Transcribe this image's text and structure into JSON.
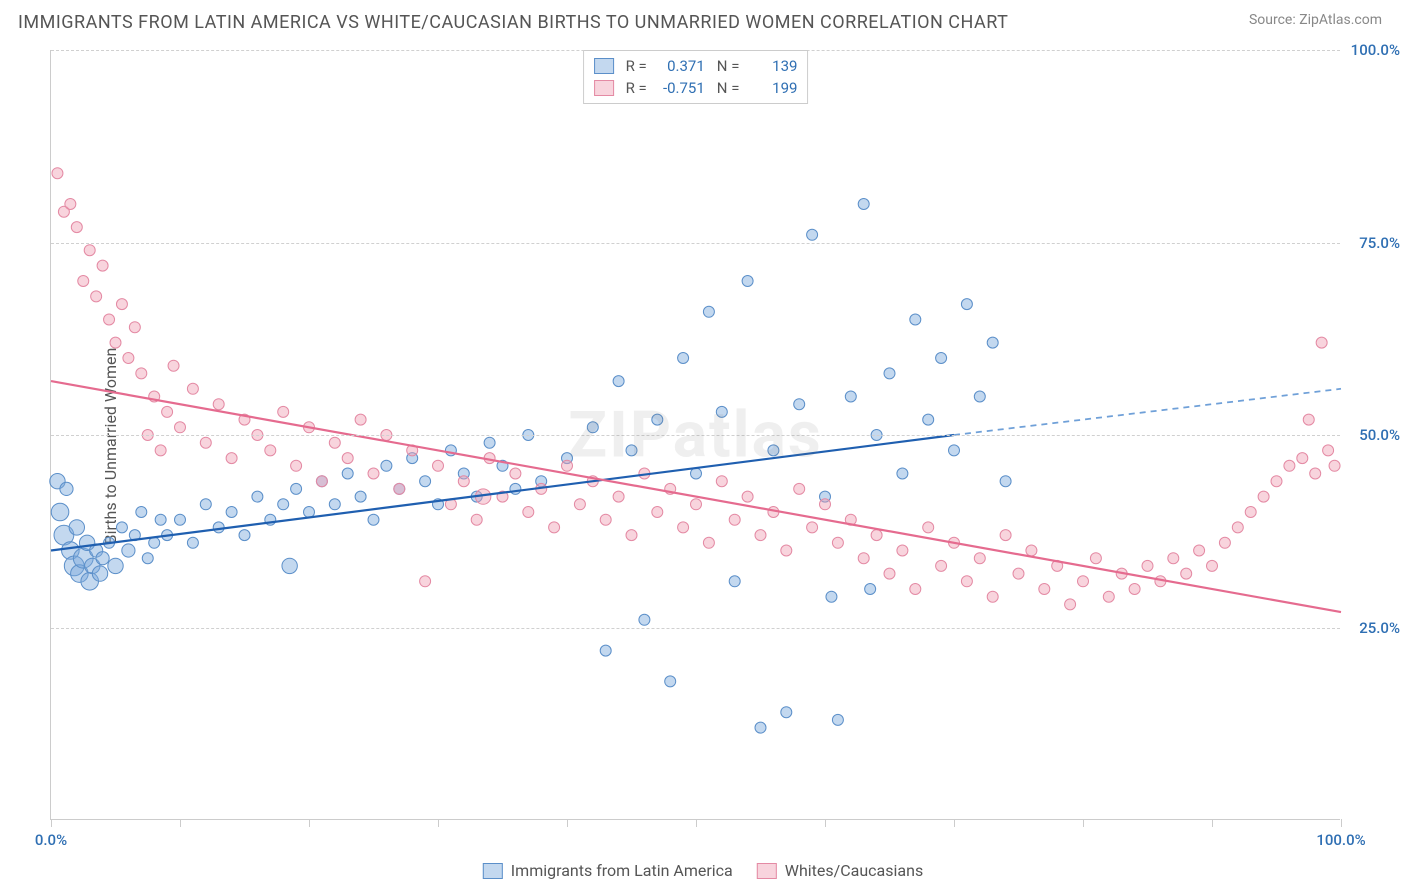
{
  "title": "IMMIGRANTS FROM LATIN AMERICA VS WHITE/CAUCASIAN BIRTHS TO UNMARRIED WOMEN CORRELATION CHART",
  "source_label": "Source: ",
  "source_name": "ZipAtlas.com",
  "ylabel": "Births to Unmarried Women",
  "watermark": "ZIPatlas",
  "chart": {
    "type": "scatter-correlation",
    "xlim": [
      0,
      100
    ],
    "ylim": [
      0,
      100
    ],
    "yticks": [
      25,
      50,
      75,
      100
    ],
    "ytick_labels": [
      "25.0%",
      "50.0%",
      "75.0%",
      "100.0%"
    ],
    "ytick_color": "#2f6fb3",
    "xticks": [
      0,
      10,
      20,
      30,
      40,
      50,
      60,
      70,
      80,
      90,
      100
    ],
    "xtick_labels_shown": {
      "0": "0.0%",
      "100": "100.0%"
    },
    "xtick_color": "#2f6fb3",
    "grid_color": "#d0d0d0",
    "background_color": "#ffffff",
    "axis_color": "#cccccc",
    "series": [
      {
        "id": "blue",
        "label": "Immigrants from Latin America",
        "color_fill": "rgba(122,168,219,0.45)",
        "color_stroke": "#5b8fc9",
        "R": "0.371",
        "N": "139",
        "trend": {
          "x1": 0,
          "y1": 35,
          "x2": 70,
          "y2": 50,
          "x2_ext": 100,
          "y2_ext": 56,
          "solid_color": "#1f5fb0",
          "dash_color": "#6fa0d8",
          "width": 2.2
        },
        "points": [
          {
            "x": 0.5,
            "y": 44,
            "r": 14
          },
          {
            "x": 0.7,
            "y": 40,
            "r": 16
          },
          {
            "x": 1,
            "y": 37,
            "r": 18
          },
          {
            "x": 1.2,
            "y": 43,
            "r": 12
          },
          {
            "x": 1.5,
            "y": 35,
            "r": 16
          },
          {
            "x": 1.8,
            "y": 33,
            "r": 18
          },
          {
            "x": 2,
            "y": 38,
            "r": 14
          },
          {
            "x": 2.2,
            "y": 32,
            "r": 16
          },
          {
            "x": 2.5,
            "y": 34,
            "r": 18
          },
          {
            "x": 2.8,
            "y": 36,
            "r": 14
          },
          {
            "x": 3,
            "y": 31,
            "r": 16
          },
          {
            "x": 3.2,
            "y": 33,
            "r": 14
          },
          {
            "x": 3.5,
            "y": 35,
            "r": 12
          },
          {
            "x": 3.8,
            "y": 32,
            "r": 14
          },
          {
            "x": 4,
            "y": 34,
            "r": 12
          },
          {
            "x": 4.5,
            "y": 36,
            "r": 10
          },
          {
            "x": 5,
            "y": 33,
            "r": 14
          },
          {
            "x": 5.5,
            "y": 38,
            "r": 10
          },
          {
            "x": 6,
            "y": 35,
            "r": 12
          },
          {
            "x": 6.5,
            "y": 37,
            "r": 10
          },
          {
            "x": 7,
            "y": 40,
            "r": 10
          },
          {
            "x": 7.5,
            "y": 34,
            "r": 10
          },
          {
            "x": 8,
            "y": 36,
            "r": 10
          },
          {
            "x": 8.5,
            "y": 39,
            "r": 10
          },
          {
            "x": 9,
            "y": 37,
            "r": 10
          },
          {
            "x": 10,
            "y": 39,
            "r": 10
          },
          {
            "x": 11,
            "y": 36,
            "r": 10
          },
          {
            "x": 12,
            "y": 41,
            "r": 10
          },
          {
            "x": 13,
            "y": 38,
            "r": 10
          },
          {
            "x": 14,
            "y": 40,
            "r": 10
          },
          {
            "x": 15,
            "y": 37,
            "r": 10
          },
          {
            "x": 16,
            "y": 42,
            "r": 10
          },
          {
            "x": 17,
            "y": 39,
            "r": 10
          },
          {
            "x": 18,
            "y": 41,
            "r": 10
          },
          {
            "x": 18.5,
            "y": 33,
            "r": 14
          },
          {
            "x": 19,
            "y": 43,
            "r": 10
          },
          {
            "x": 20,
            "y": 40,
            "r": 10
          },
          {
            "x": 21,
            "y": 44,
            "r": 10
          },
          {
            "x": 22,
            "y": 41,
            "r": 10
          },
          {
            "x": 23,
            "y": 45,
            "r": 10
          },
          {
            "x": 24,
            "y": 42,
            "r": 10
          },
          {
            "x": 25,
            "y": 39,
            "r": 10
          },
          {
            "x": 26,
            "y": 46,
            "r": 10
          },
          {
            "x": 27,
            "y": 43,
            "r": 10
          },
          {
            "x": 28,
            "y": 47,
            "r": 10
          },
          {
            "x": 29,
            "y": 44,
            "r": 10
          },
          {
            "x": 30,
            "y": 41,
            "r": 10
          },
          {
            "x": 31,
            "y": 48,
            "r": 10
          },
          {
            "x": 32,
            "y": 45,
            "r": 10
          },
          {
            "x": 33,
            "y": 42,
            "r": 10
          },
          {
            "x": 34,
            "y": 49,
            "r": 10
          },
          {
            "x": 35,
            "y": 46,
            "r": 10
          },
          {
            "x": 36,
            "y": 43,
            "r": 10
          },
          {
            "x": 37,
            "y": 50,
            "r": 10
          },
          {
            "x": 38,
            "y": 44,
            "r": 10
          },
          {
            "x": 40,
            "y": 47,
            "r": 10
          },
          {
            "x": 42,
            "y": 51,
            "r": 10
          },
          {
            "x": 43,
            "y": 22,
            "r": 10
          },
          {
            "x": 44,
            "y": 57,
            "r": 10
          },
          {
            "x": 45,
            "y": 48,
            "r": 10
          },
          {
            "x": 46,
            "y": 26,
            "r": 10
          },
          {
            "x": 47,
            "y": 52,
            "r": 10
          },
          {
            "x": 48,
            "y": 18,
            "r": 10
          },
          {
            "x": 49,
            "y": 60,
            "r": 10
          },
          {
            "x": 50,
            "y": 45,
            "r": 10
          },
          {
            "x": 51,
            "y": 66,
            "r": 10
          },
          {
            "x": 52,
            "y": 53,
            "r": 10
          },
          {
            "x": 53,
            "y": 31,
            "r": 10
          },
          {
            "x": 54,
            "y": 70,
            "r": 10
          },
          {
            "x": 55,
            "y": 12,
            "r": 10
          },
          {
            "x": 56,
            "y": 48,
            "r": 10
          },
          {
            "x": 57,
            "y": 14,
            "r": 10
          },
          {
            "x": 58,
            "y": 54,
            "r": 10
          },
          {
            "x": 59,
            "y": 76,
            "r": 10
          },
          {
            "x": 60,
            "y": 42,
            "r": 10
          },
          {
            "x": 60.5,
            "y": 29,
            "r": 10
          },
          {
            "x": 61,
            "y": 13,
            "r": 10
          },
          {
            "x": 62,
            "y": 55,
            "r": 10
          },
          {
            "x": 63,
            "y": 80,
            "r": 10
          },
          {
            "x": 63.5,
            "y": 30,
            "r": 10
          },
          {
            "x": 64,
            "y": 50,
            "r": 10
          },
          {
            "x": 65,
            "y": 58,
            "r": 10
          },
          {
            "x": 66,
            "y": 45,
            "r": 10
          },
          {
            "x": 67,
            "y": 65,
            "r": 10
          },
          {
            "x": 68,
            "y": 52,
            "r": 10
          },
          {
            "x": 69,
            "y": 60,
            "r": 10
          },
          {
            "x": 70,
            "y": 48,
            "r": 10
          },
          {
            "x": 71,
            "y": 67,
            "r": 10
          },
          {
            "x": 72,
            "y": 55,
            "r": 10
          },
          {
            "x": 73,
            "y": 62,
            "r": 10
          },
          {
            "x": 74,
            "y": 44,
            "r": 10
          }
        ]
      },
      {
        "id": "pink",
        "label": "Whites/Caucasians",
        "color_fill": "rgba(240,160,180,0.45)",
        "color_stroke": "#e48aa4",
        "R": "-0.751",
        "N": "199",
        "trend": {
          "x1": 0,
          "y1": 57,
          "x2": 100,
          "y2": 27,
          "solid_color": "#e56b8f",
          "width": 2.2
        },
        "points": [
          {
            "x": 0.5,
            "y": 84,
            "r": 10
          },
          {
            "x": 1,
            "y": 79,
            "r": 10
          },
          {
            "x": 1.5,
            "y": 80,
            "r": 10
          },
          {
            "x": 2,
            "y": 77,
            "r": 10
          },
          {
            "x": 2.5,
            "y": 70,
            "r": 10
          },
          {
            "x": 3,
            "y": 74,
            "r": 10
          },
          {
            "x": 3.5,
            "y": 68,
            "r": 10
          },
          {
            "x": 4,
            "y": 72,
            "r": 10
          },
          {
            "x": 4.5,
            "y": 65,
            "r": 10
          },
          {
            "x": 5,
            "y": 62,
            "r": 10
          },
          {
            "x": 5.5,
            "y": 67,
            "r": 10
          },
          {
            "x": 6,
            "y": 60,
            "r": 10
          },
          {
            "x": 6.5,
            "y": 64,
            "r": 10
          },
          {
            "x": 7,
            "y": 58,
            "r": 10
          },
          {
            "x": 7.5,
            "y": 50,
            "r": 10
          },
          {
            "x": 8,
            "y": 55,
            "r": 10
          },
          {
            "x": 8.5,
            "y": 48,
            "r": 10
          },
          {
            "x": 9,
            "y": 53,
            "r": 10
          },
          {
            "x": 9.5,
            "y": 59,
            "r": 10
          },
          {
            "x": 10,
            "y": 51,
            "r": 10
          },
          {
            "x": 11,
            "y": 56,
            "r": 10
          },
          {
            "x": 12,
            "y": 49,
            "r": 10
          },
          {
            "x": 13,
            "y": 54,
            "r": 10
          },
          {
            "x": 14,
            "y": 47,
            "r": 10
          },
          {
            "x": 15,
            "y": 52,
            "r": 10
          },
          {
            "x": 16,
            "y": 50,
            "r": 10
          },
          {
            "x": 17,
            "y": 48,
            "r": 10
          },
          {
            "x": 18,
            "y": 53,
            "r": 10
          },
          {
            "x": 19,
            "y": 46,
            "r": 10
          },
          {
            "x": 20,
            "y": 51,
            "r": 10
          },
          {
            "x": 21,
            "y": 44,
            "r": 10
          },
          {
            "x": 22,
            "y": 49,
            "r": 10
          },
          {
            "x": 23,
            "y": 47,
            "r": 10
          },
          {
            "x": 24,
            "y": 52,
            "r": 10
          },
          {
            "x": 25,
            "y": 45,
            "r": 10
          },
          {
            "x": 26,
            "y": 50,
            "r": 10
          },
          {
            "x": 27,
            "y": 43,
            "r": 10
          },
          {
            "x": 28,
            "y": 48,
            "r": 10
          },
          {
            "x": 29,
            "y": 31,
            "r": 10
          },
          {
            "x": 30,
            "y": 46,
            "r": 10
          },
          {
            "x": 31,
            "y": 41,
            "r": 10
          },
          {
            "x": 32,
            "y": 44,
            "r": 10
          },
          {
            "x": 33,
            "y": 39,
            "r": 10
          },
          {
            "x": 33.5,
            "y": 42,
            "r": 14
          },
          {
            "x": 34,
            "y": 47,
            "r": 10
          },
          {
            "x": 35,
            "y": 42,
            "r": 10
          },
          {
            "x": 36,
            "y": 45,
            "r": 10
          },
          {
            "x": 37,
            "y": 40,
            "r": 10
          },
          {
            "x": 38,
            "y": 43,
            "r": 10
          },
          {
            "x": 39,
            "y": 38,
            "r": 10
          },
          {
            "x": 40,
            "y": 46,
            "r": 10
          },
          {
            "x": 41,
            "y": 41,
            "r": 10
          },
          {
            "x": 42,
            "y": 44,
            "r": 10
          },
          {
            "x": 43,
            "y": 39,
            "r": 10
          },
          {
            "x": 44,
            "y": 42,
            "r": 10
          },
          {
            "x": 45,
            "y": 37,
            "r": 10
          },
          {
            "x": 46,
            "y": 45,
            "r": 10
          },
          {
            "x": 47,
            "y": 40,
            "r": 10
          },
          {
            "x": 48,
            "y": 43,
            "r": 10
          },
          {
            "x": 49,
            "y": 38,
            "r": 10
          },
          {
            "x": 50,
            "y": 41,
            "r": 10
          },
          {
            "x": 51,
            "y": 36,
            "r": 10
          },
          {
            "x": 52,
            "y": 44,
            "r": 10
          },
          {
            "x": 53,
            "y": 39,
            "r": 10
          },
          {
            "x": 54,
            "y": 42,
            "r": 10
          },
          {
            "x": 55,
            "y": 37,
            "r": 10
          },
          {
            "x": 56,
            "y": 40,
            "r": 10
          },
          {
            "x": 57,
            "y": 35,
            "r": 10
          },
          {
            "x": 58,
            "y": 43,
            "r": 10
          },
          {
            "x": 59,
            "y": 38,
            "r": 10
          },
          {
            "x": 60,
            "y": 41,
            "r": 10
          },
          {
            "x": 61,
            "y": 36,
            "r": 10
          },
          {
            "x": 62,
            "y": 39,
            "r": 10
          },
          {
            "x": 63,
            "y": 34,
            "r": 10
          },
          {
            "x": 64,
            "y": 37,
            "r": 10
          },
          {
            "x": 65,
            "y": 32,
            "r": 10
          },
          {
            "x": 66,
            "y": 35,
            "r": 10
          },
          {
            "x": 67,
            "y": 30,
            "r": 10
          },
          {
            "x": 68,
            "y": 38,
            "r": 10
          },
          {
            "x": 69,
            "y": 33,
            "r": 10
          },
          {
            "x": 70,
            "y": 36,
            "r": 10
          },
          {
            "x": 71,
            "y": 31,
            "r": 10
          },
          {
            "x": 72,
            "y": 34,
            "r": 10
          },
          {
            "x": 73,
            "y": 29,
            "r": 10
          },
          {
            "x": 74,
            "y": 37,
            "r": 10
          },
          {
            "x": 75,
            "y": 32,
            "r": 10
          },
          {
            "x": 76,
            "y": 35,
            "r": 10
          },
          {
            "x": 77,
            "y": 30,
            "r": 10
          },
          {
            "x": 78,
            "y": 33,
            "r": 10
          },
          {
            "x": 79,
            "y": 28,
            "r": 10
          },
          {
            "x": 80,
            "y": 31,
            "r": 10
          },
          {
            "x": 81,
            "y": 34,
            "r": 10
          },
          {
            "x": 82,
            "y": 29,
            "r": 10
          },
          {
            "x": 83,
            "y": 32,
            "r": 10
          },
          {
            "x": 84,
            "y": 30,
            "r": 10
          },
          {
            "x": 85,
            "y": 33,
            "r": 10
          },
          {
            "x": 86,
            "y": 31,
            "r": 10
          },
          {
            "x": 87,
            "y": 34,
            "r": 10
          },
          {
            "x": 88,
            "y": 32,
            "r": 10
          },
          {
            "x": 89,
            "y": 35,
            "r": 10
          },
          {
            "x": 90,
            "y": 33,
            "r": 10
          },
          {
            "x": 91,
            "y": 36,
            "r": 10
          },
          {
            "x": 92,
            "y": 38,
            "r": 10
          },
          {
            "x": 93,
            "y": 40,
            "r": 10
          },
          {
            "x": 94,
            "y": 42,
            "r": 10
          },
          {
            "x": 95,
            "y": 44,
            "r": 10
          },
          {
            "x": 96,
            "y": 46,
            "r": 10
          },
          {
            "x": 97,
            "y": 47,
            "r": 10
          },
          {
            "x": 97.5,
            "y": 52,
            "r": 10
          },
          {
            "x": 98,
            "y": 45,
            "r": 10
          },
          {
            "x": 98.5,
            "y": 62,
            "r": 10
          },
          {
            "x": 99,
            "y": 48,
            "r": 10
          },
          {
            "x": 99.5,
            "y": 46,
            "r": 10
          }
        ]
      }
    ]
  },
  "legend_top": {
    "r_label": "R =",
    "n_label": "N =",
    "value_color": "#2f6fb3"
  },
  "legend_bottom": {
    "items": [
      {
        "label": "Immigrants from Latin America",
        "fill": "rgba(122,168,219,0.45)",
        "stroke": "#5b8fc9"
      },
      {
        "label": "Whites/Caucasians",
        "fill": "rgba(240,160,180,0.45)",
        "stroke": "#e48aa4"
      }
    ]
  }
}
